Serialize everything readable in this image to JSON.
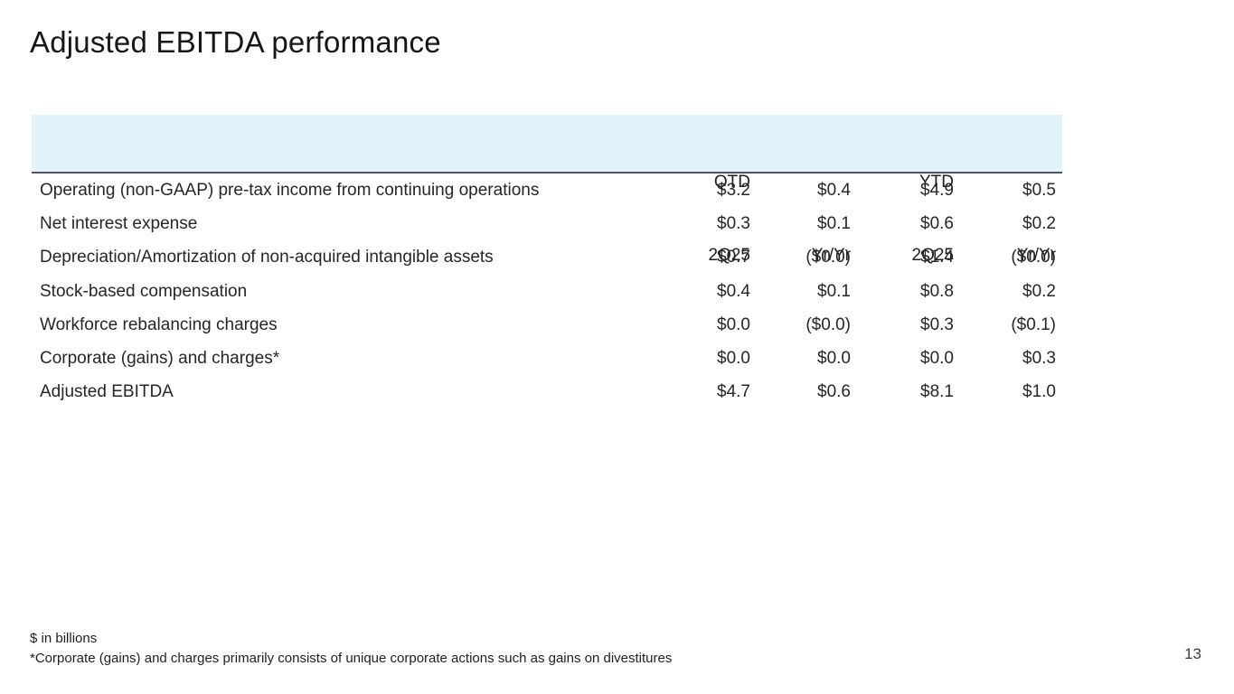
{
  "slide": {
    "title": "Adjusted EBITDA performance",
    "page_number": "13"
  },
  "table": {
    "columns": [
      {
        "group": "QTD",
        "sub": "2Q25"
      },
      {
        "group": " ",
        "sub": "Yr/Yr"
      },
      {
        "group": "YTD",
        "sub": "2Q25"
      },
      {
        "group": " ",
        "sub": "Yr/Yr"
      }
    ],
    "rows": [
      {
        "label": "Operating (non-GAAP) pre-tax income from continuing operations",
        "values": [
          "$3.2",
          "$0.4",
          "$4.9",
          "$0.5"
        ]
      },
      {
        "label": "Net interest expense",
        "values": [
          "$0.3",
          "$0.1",
          "$0.6",
          "$0.2"
        ]
      },
      {
        "label": "Depreciation/Amortization of non-acquired intangible assets",
        "values": [
          "$0.7",
          "($0.0)",
          "$1.4",
          "($0.0)"
        ]
      },
      {
        "label": "Stock-based compensation",
        "values": [
          "$0.4",
          "$0.1",
          "$0.8",
          "$0.2"
        ]
      },
      {
        "label": "Workforce rebalancing charges",
        "values": [
          "$0.0",
          "($0.0)",
          "$0.3",
          "($0.1)"
        ]
      },
      {
        "label": "Corporate (gains) and charges*",
        "values": [
          "$0.0",
          "$0.0",
          "$0.0",
          "$0.3"
        ]
      },
      {
        "label": "Adjusted EBITDA",
        "values": [
          "$4.7",
          "$0.6",
          "$8.1",
          "$1.0"
        ]
      }
    ]
  },
  "footnotes": {
    "line1": "$ in billions",
    "line2": "*Corporate (gains) and charges primarily consists of unique corporate actions such as gains on divestitures"
  },
  "colors": {
    "header_background": "#e2f3fb",
    "header_border": "#50565b",
    "text": "#262626"
  }
}
